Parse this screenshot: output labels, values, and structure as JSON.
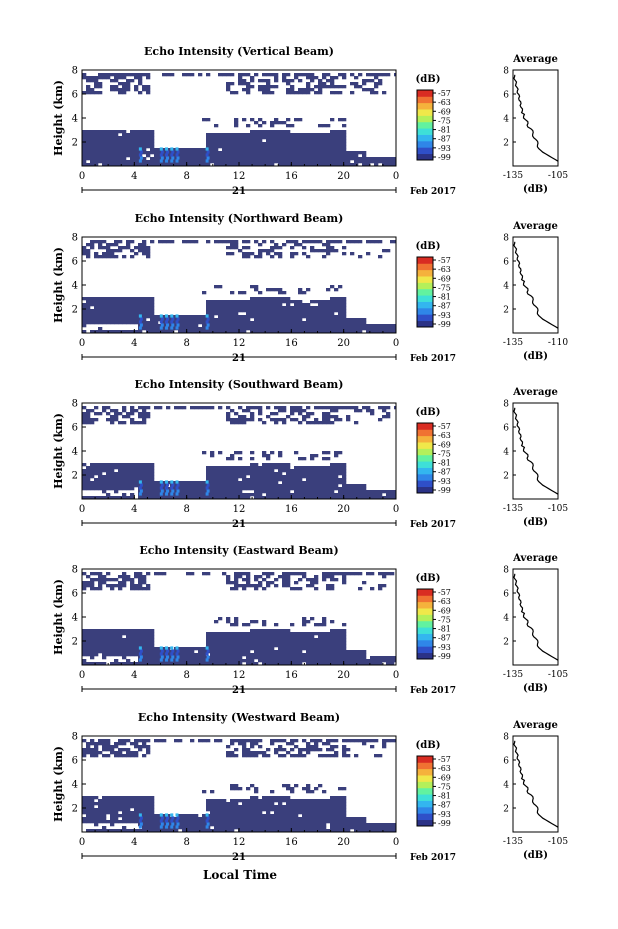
{
  "figure": {
    "xlabel": "Local Time",
    "date_label": "Feb 2017",
    "day_label": "21",
    "colorbar_unit": "(dB)",
    "avg_title": "Average",
    "avg_xlabel": "(dB)"
  },
  "colors": {
    "colormap": [
      "#2b3286",
      "#2f4fc8",
      "#2f86e8",
      "#33b6ef",
      "#3ee0d8",
      "#62f2a0",
      "#b4f05a",
      "#f0e84a",
      "#f5b23c",
      "#f07232",
      "#d92c22"
    ],
    "background_echo": "#3a3f7c"
  },
  "chart_data": [
    {
      "type": "heatmap",
      "title": "Echo Intensity (Vertical Beam)",
      "ylabel": "Height (km)",
      "xlim": [
        0,
        24
      ],
      "ylim": [
        0,
        8
      ],
      "xticks": [
        "0",
        "4",
        "8",
        "12",
        "16",
        "20",
        "0"
      ],
      "yticks": [
        "2",
        "4",
        "6",
        "8"
      ],
      "colorbar_ticks": [
        "-57",
        "-63",
        "-69",
        "-75",
        "-81",
        "-87",
        "-93",
        "-99"
      ],
      "average": {
        "type": "line",
        "xlim": [
          -135,
          -105
        ],
        "xticks": [
          "-135",
          "-105"
        ],
        "ylim": [
          0,
          8
        ],
        "yticks": [
          "2",
          "4",
          "6",
          "8"
        ]
      }
    },
    {
      "type": "heatmap",
      "title": "Echo Intensity (Northward Beam)",
      "ylabel": "Height (km)",
      "xlim": [
        0,
        24
      ],
      "ylim": [
        0,
        8
      ],
      "xticks": [
        "0",
        "4",
        "8",
        "12",
        "16",
        "20",
        "0"
      ],
      "yticks": [
        "2",
        "4",
        "6",
        "8"
      ],
      "colorbar_ticks": [
        "-57",
        "-63",
        "-69",
        "-75",
        "-81",
        "-87",
        "-93",
        "-99"
      ],
      "average": {
        "type": "line",
        "xlim": [
          -135,
          -110
        ],
        "xticks": [
          "-135",
          "-110"
        ],
        "ylim": [
          0,
          8
        ],
        "yticks": [
          "2",
          "4",
          "6",
          "8"
        ]
      }
    },
    {
      "type": "heatmap",
      "title": "Echo Intensity (Southward Beam)",
      "ylabel": "Height (km)",
      "xlim": [
        0,
        24
      ],
      "ylim": [
        0,
        8
      ],
      "xticks": [
        "0",
        "4",
        "8",
        "12",
        "16",
        "20",
        "0"
      ],
      "yticks": [
        "2",
        "4",
        "6",
        "8"
      ],
      "colorbar_ticks": [
        "-57",
        "-63",
        "-69",
        "-75",
        "-81",
        "-87",
        "-93",
        "-99"
      ],
      "average": {
        "type": "line",
        "xlim": [
          -135,
          -105
        ],
        "xticks": [
          "-135",
          "-105"
        ],
        "ylim": [
          0,
          8
        ],
        "yticks": [
          "2",
          "4",
          "6",
          "8"
        ]
      }
    },
    {
      "type": "heatmap",
      "title": "Echo Intensity (Eastward Beam)",
      "ylabel": "Height (km)",
      "xlim": [
        0,
        24
      ],
      "ylim": [
        0,
        8
      ],
      "xticks": [
        "0",
        "4",
        "8",
        "12",
        "16",
        "20",
        "0"
      ],
      "yticks": [
        "2",
        "4",
        "6",
        "8"
      ],
      "colorbar_ticks": [
        "-57",
        "-63",
        "-69",
        "-75",
        "-81",
        "-87",
        "-93",
        "-99"
      ],
      "average": {
        "type": "line",
        "xlim": [
          -135,
          -105
        ],
        "xticks": [
          "-135",
          "-105"
        ],
        "ylim": [
          0,
          8
        ],
        "yticks": [
          "2",
          "4",
          "6",
          "8"
        ]
      }
    },
    {
      "type": "heatmap",
      "title": "Echo Intensity (Westward Beam)",
      "ylabel": "Height (km)",
      "xlim": [
        0,
        24
      ],
      "ylim": [
        0,
        8
      ],
      "xticks": [
        "0",
        "4",
        "8",
        "12",
        "16",
        "20",
        "0"
      ],
      "yticks": [
        "2",
        "4",
        "6",
        "8"
      ],
      "colorbar_ticks": [
        "-57",
        "-63",
        "-69",
        "-75",
        "-81",
        "-87",
        "-93",
        "-99"
      ],
      "average": {
        "type": "line",
        "xlim": [
          -135,
          -105
        ],
        "xticks": [
          "-135",
          "-105"
        ],
        "ylim": [
          0,
          8
        ],
        "yticks": [
          "2",
          "4",
          "6",
          "8"
        ]
      }
    }
  ]
}
